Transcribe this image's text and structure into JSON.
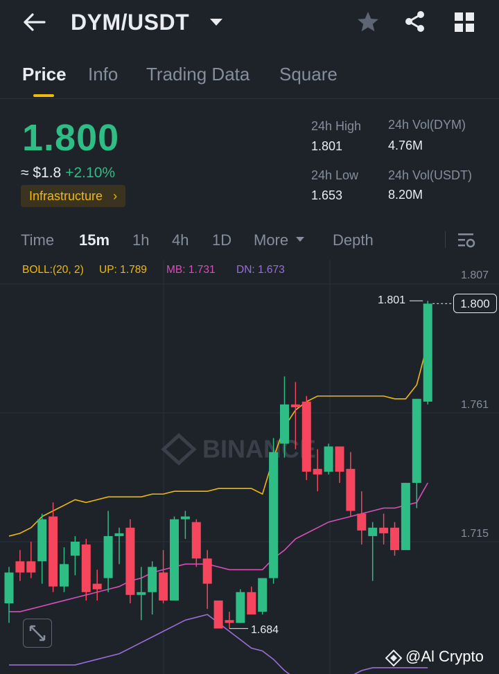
{
  "header": {
    "back_icon": "arrow-left-icon",
    "pair": "DYM/USDT",
    "actions": [
      "star-icon",
      "share-icon",
      "grid-icon"
    ]
  },
  "tabs": [
    {
      "label": "Price",
      "active": true
    },
    {
      "label": "Info",
      "active": false
    },
    {
      "label": "Trading Data",
      "active": false
    },
    {
      "label": "Square",
      "active": false
    }
  ],
  "ticker": {
    "price": "1.800",
    "fiat": "≈ $1.8",
    "change": "+2.10%",
    "tag": "Infrastructure",
    "tag_chevron": "›",
    "stats": {
      "high_label": "24h High",
      "high_value": "1.801",
      "vol_base_label": "24h Vol(DYM)",
      "vol_base_value": "4.76M",
      "low_label": "24h Low",
      "low_value": "1.653",
      "vol_quote_label": "24h Vol(USDT)",
      "vol_quote_value": "8.20M"
    }
  },
  "timeframes": [
    {
      "label": "Time",
      "active": false
    },
    {
      "label": "15m",
      "active": true
    },
    {
      "label": "1h",
      "active": false
    },
    {
      "label": "4h",
      "active": false
    },
    {
      "label": "1D",
      "active": false
    },
    {
      "label": "More",
      "active": false
    },
    {
      "label": "Depth",
      "active": false
    }
  ],
  "indicator": {
    "name": "BOLL:(20, 2)",
    "up": "UP: 1.789",
    "mb": "MB: 1.731",
    "dn": "DN: 1.673"
  },
  "colors": {
    "up": "#2ebd85",
    "down": "#f6465d",
    "accent": "#f0b90b",
    "boll_up": "#f0b90b",
    "boll_mb": "#d84fb8",
    "boll_dn": "#9a6fd8"
  },
  "chart_data": {
    "type": "candlestick",
    "y_ticks": [
      "1.807",
      "1.761",
      "1.715"
    ],
    "ylim": [
      1.666,
      1.807
    ],
    "current_price_label": "1.800",
    "high_annotation": "1.801",
    "low_annotation": "1.684",
    "candles": [
      {
        "o": 1.693,
        "h": 1.706,
        "l": 1.686,
        "c": 1.704
      },
      {
        "o": 1.708,
        "h": 1.712,
        "l": 1.701,
        "c": 1.704
      },
      {
        "o": 1.708,
        "h": 1.715,
        "l": 1.702,
        "c": 1.704
      },
      {
        "o": 1.708,
        "h": 1.725,
        "l": 1.7,
        "c": 1.723
      },
      {
        "o": 1.724,
        "h": 1.729,
        "l": 1.697,
        "c": 1.699
      },
      {
        "o": 1.699,
        "h": 1.713,
        "l": 1.697,
        "c": 1.707
      },
      {
        "o": 1.71,
        "h": 1.717,
        "l": 1.703,
        "c": 1.715
      },
      {
        "o": 1.714,
        "h": 1.716,
        "l": 1.694,
        "c": 1.697
      },
      {
        "o": 1.7,
        "h": 1.705,
        "l": 1.694,
        "c": 1.698
      },
      {
        "o": 1.702,
        "h": 1.726,
        "l": 1.697,
        "c": 1.717
      },
      {
        "o": 1.717,
        "h": 1.72,
        "l": 1.707,
        "c": 1.718
      },
      {
        "o": 1.72,
        "h": 1.723,
        "l": 1.693,
        "c": 1.696
      },
      {
        "o": 1.696,
        "h": 1.706,
        "l": 1.687,
        "c": 1.697
      },
      {
        "o": 1.697,
        "h": 1.708,
        "l": 1.689,
        "c": 1.706
      },
      {
        "o": 1.704,
        "h": 1.712,
        "l": 1.693,
        "c": 1.694
      },
      {
        "o": 1.694,
        "h": 1.724,
        "l": 1.694,
        "c": 1.723
      },
      {
        "o": 1.723,
        "h": 1.726,
        "l": 1.716,
        "c": 1.724
      },
      {
        "o": 1.722,
        "h": 1.723,
        "l": 1.706,
        "c": 1.709
      },
      {
        "o": 1.709,
        "h": 1.712,
        "l": 1.691,
        "c": 1.7
      },
      {
        "o": 1.694,
        "h": 1.694,
        "l": 1.685,
        "c": 1.684
      },
      {
        "o": 1.687,
        "h": 1.69,
        "l": 1.684,
        "c": 1.686
      },
      {
        "o": 1.686,
        "h": 1.698,
        "l": 1.686,
        "c": 1.697
      },
      {
        "o": 1.697,
        "h": 1.699,
        "l": 1.689,
        "c": 1.689
      },
      {
        "o": 1.69,
        "h": 1.702,
        "l": 1.689,
        "c": 1.702
      },
      {
        "o": 1.702,
        "h": 1.752,
        "l": 1.7,
        "c": 1.747
      },
      {
        "o": 1.75,
        "h": 1.774,
        "l": 1.745,
        "c": 1.764
      },
      {
        "o": 1.764,
        "h": 1.772,
        "l": 1.748,
        "c": 1.763
      },
      {
        "o": 1.765,
        "h": 1.767,
        "l": 1.737,
        "c": 1.74
      },
      {
        "o": 1.741,
        "h": 1.748,
        "l": 1.733,
        "c": 1.739
      },
      {
        "o": 1.74,
        "h": 1.75,
        "l": 1.739,
        "c": 1.749
      },
      {
        "o": 1.749,
        "h": 1.749,
        "l": 1.736,
        "c": 1.74
      },
      {
        "o": 1.741,
        "h": 1.747,
        "l": 1.724,
        "c": 1.726
      },
      {
        "o": 1.725,
        "h": 1.733,
        "l": 1.714,
        "c": 1.719
      },
      {
        "o": 1.717,
        "h": 1.722,
        "l": 1.701,
        "c": 1.72
      },
      {
        "o": 1.72,
        "h": 1.725,
        "l": 1.714,
        "c": 1.718
      },
      {
        "o": 1.72,
        "h": 1.722,
        "l": 1.71,
        "c": 1.712
      },
      {
        "o": 1.712,
        "h": 1.736,
        "l": 1.712,
        "c": 1.736
      },
      {
        "o": 1.736,
        "h": 1.766,
        "l": 1.727,
        "c": 1.766
      },
      {
        "o": 1.765,
        "h": 1.801,
        "l": 1.764,
        "c": 1.8
      }
    ],
    "boll_up": [
      1.717,
      1.718,
      1.72,
      1.724,
      1.726,
      1.728,
      1.73,
      1.729,
      1.73,
      1.731,
      1.731,
      1.731,
      1.731,
      1.732,
      1.732,
      1.733,
      1.733,
      1.733,
      1.733,
      1.734,
      1.734,
      1.734,
      1.734,
      1.732,
      1.745,
      1.756,
      1.762,
      1.765,
      1.767,
      1.767,
      1.767,
      1.767,
      1.767,
      1.767,
      1.767,
      1.766,
      1.766,
      1.771,
      1.786
    ],
    "boll_mb": [
      1.69,
      1.69,
      1.691,
      1.692,
      1.693,
      1.694,
      1.695,
      1.696,
      1.697,
      1.698,
      1.699,
      1.701,
      1.702,
      1.704,
      1.705,
      1.706,
      1.707,
      1.707,
      1.707,
      1.706,
      1.705,
      1.705,
      1.705,
      1.705,
      1.709,
      1.712,
      1.716,
      1.718,
      1.72,
      1.722,
      1.723,
      1.724,
      1.725,
      1.726,
      1.727,
      1.727,
      1.728,
      1.729,
      1.736
    ],
    "boll_dn": [
      1.671,
      1.671,
      1.671,
      1.671,
      1.671,
      1.671,
      1.671,
      1.672,
      1.673,
      1.674,
      1.675,
      1.677,
      1.679,
      1.681,
      1.683,
      1.685,
      1.687,
      1.688,
      1.689,
      1.686,
      1.683,
      1.68,
      1.677,
      1.676,
      1.673,
      1.669,
      1.666,
      1.666,
      1.666,
      1.666,
      1.666,
      1.667,
      1.669,
      1.67,
      1.67,
      1.67,
      1.67,
      1.67,
      1.67
    ]
  },
  "watermark": {
    "chart_logo": "BINANCE",
    "credit": "@Al Crypto"
  }
}
